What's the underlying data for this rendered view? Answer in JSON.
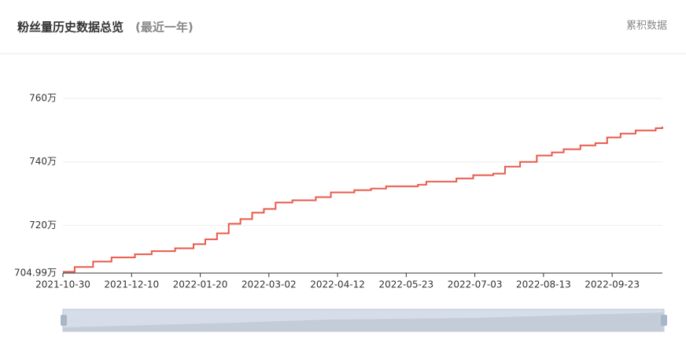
{
  "header": {
    "title": "粉丝量历史数据总览",
    "subtitle": "(最近一年)",
    "action": "累积数据"
  },
  "chart_data": {
    "type": "line",
    "x": [
      "2021-10-30",
      "2021-11-06",
      "2021-11-17",
      "2021-11-28",
      "2021-12-12",
      "2021-12-22",
      "2022-01-05",
      "2022-01-16",
      "2022-01-23",
      "2022-01-30",
      "2022-02-06",
      "2022-02-13",
      "2022-02-20",
      "2022-02-27",
      "2022-03-06",
      "2022-03-16",
      "2022-03-30",
      "2022-04-08",
      "2022-04-22",
      "2022-05-02",
      "2022-05-11",
      "2022-05-30",
      "2022-06-04",
      "2022-06-22",
      "2022-07-02",
      "2022-07-14",
      "2022-07-21",
      "2022-07-30",
      "2022-08-09",
      "2022-08-18",
      "2022-08-25",
      "2022-09-04",
      "2022-09-13",
      "2022-09-20",
      "2022-09-28",
      "2022-10-07",
      "2022-10-19",
      "2022-10-23"
    ],
    "series": [
      {
        "color": "#e8594a",
        "values": [
          705.4,
          706.9,
          708.6,
          709.9,
          710.9,
          711.9,
          712.8,
          714.1,
          715.6,
          717.5,
          720.5,
          722.0,
          724.0,
          725.2,
          727.2,
          727.9,
          728.9,
          730.4,
          731.1,
          731.6,
          732.3,
          732.8,
          733.8,
          734.8,
          735.8,
          736.3,
          738.5,
          740.0,
          742.0,
          743.0,
          744.0,
          745.2,
          745.9,
          747.7,
          748.9,
          749.9,
          750.6,
          751.1
        ]
      }
    ],
    "xlim": [
      "2021-10-30",
      "2022-10-23"
    ],
    "xticks": [
      "2021-10-30",
      "2021-12-10",
      "2022-01-20",
      "2022-03-02",
      "2022-04-12",
      "2022-05-23",
      "2022-07-03",
      "2022-08-13",
      "2022-09-23"
    ],
    "ylim": [
      704.99,
      760
    ],
    "yticks": [
      {
        "value": 704.99,
        "label": "704.99万"
      },
      {
        "value": 720,
        "label": "720万"
      },
      {
        "value": 740,
        "label": "740万"
      },
      {
        "value": 760,
        "label": "760万"
      }
    ],
    "grid": true,
    "step": true
  }
}
